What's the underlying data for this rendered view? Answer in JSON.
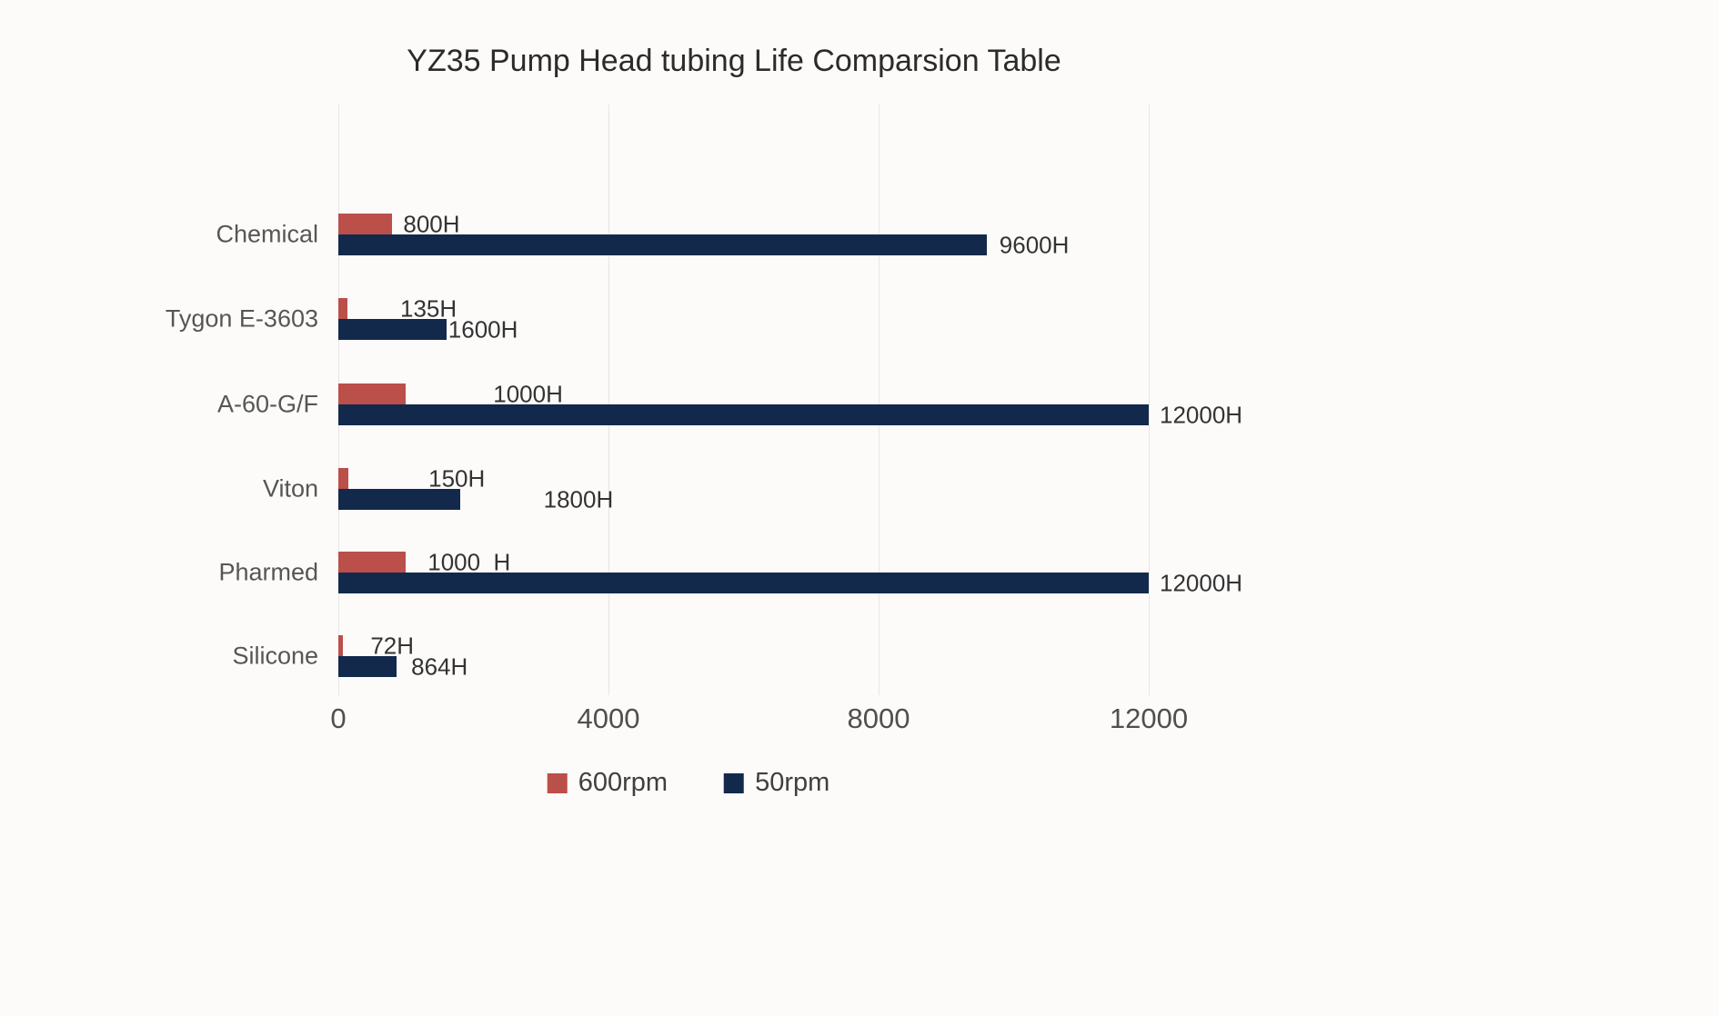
{
  "title": "YZ35 Pump Head tubing Life Comparsion Table",
  "chart_data": {
    "type": "bar",
    "orientation": "horizontal",
    "title": "YZ35 Pump Head tubing Life Comparsion Table",
    "categories": [
      "Chemical",
      "Tygon E-3603",
      "A-60-G/F",
      "Viton",
      "Pharmed",
      "Silicone"
    ],
    "series": [
      {
        "name": "600rpm",
        "color": "#bb4f4a",
        "values": [
          800,
          135,
          1000,
          150,
          1000,
          72
        ],
        "labels": [
          "800H",
          "135H",
          "1000H",
          "150H",
          "1000  H",
          "72H"
        ],
        "label_offsets": [
          12,
          58,
          96,
          88,
          24,
          30
        ]
      },
      {
        "name": "50rpm",
        "color": "#12294b",
        "values": [
          9600,
          1600,
          12000,
          1800,
          12000,
          864
        ],
        "labels": [
          "9600H",
          "1600H",
          "12000H",
          "1800H",
          "12000H",
          "864H"
        ],
        "label_offsets": [
          14,
          2,
          12,
          92,
          12,
          16
        ]
      }
    ],
    "xlabel": "",
    "ylabel": "",
    "x_ticks": [
      0,
      4000,
      8000,
      12000
    ],
    "x_tick_labels": [
      "0",
      "4000",
      "8000",
      "12000"
    ],
    "xlim": [
      0,
      12000
    ],
    "grid": true,
    "legend_position": "bottom"
  },
  "legend": {
    "items": [
      {
        "label": "600rpm",
        "color": "#bb4f4a"
      },
      {
        "label": "50rpm",
        "color": "#12294b"
      }
    ]
  }
}
